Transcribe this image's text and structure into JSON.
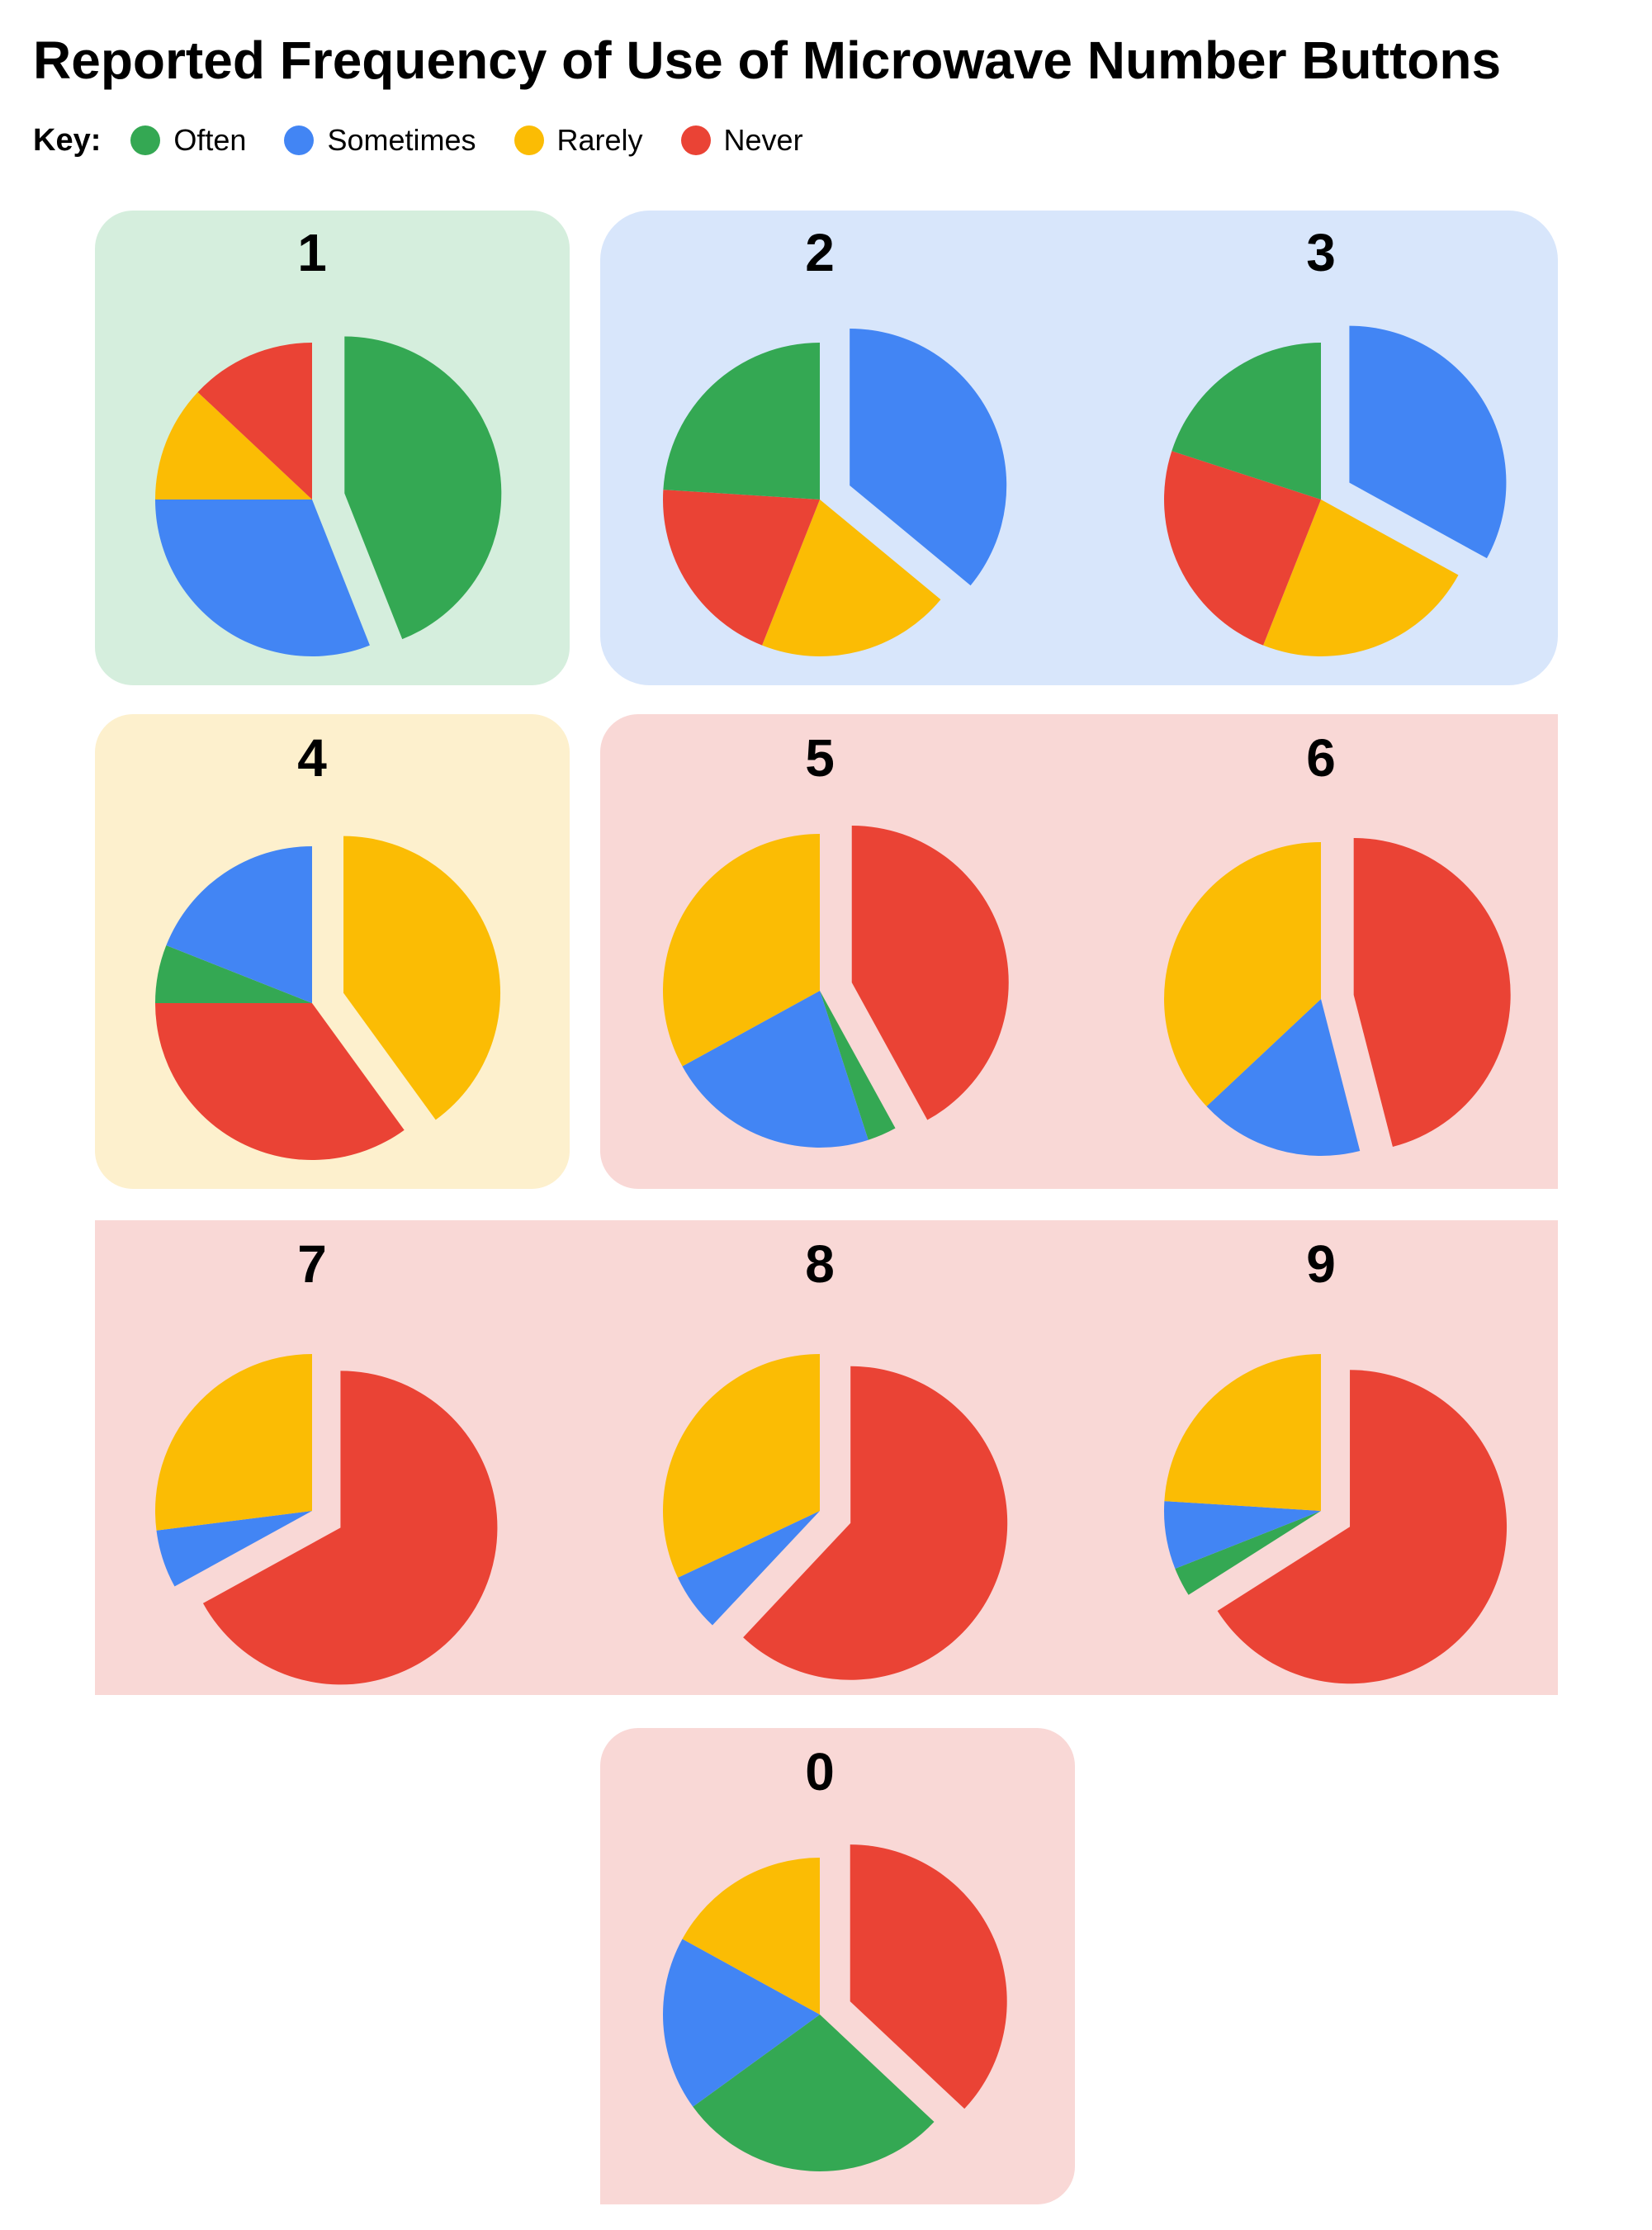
{
  "title": "Reported Frequency of Use of Microwave Number Buttons",
  "legend": {
    "label": "Key:",
    "items": [
      {
        "name": "Often",
        "color": "#34a853"
      },
      {
        "name": "Sometimes",
        "color": "#4285f4"
      },
      {
        "name": "Rarely",
        "color": "#fbbc04"
      },
      {
        "name": "Never",
        "color": "#ea4335"
      }
    ]
  },
  "colors": {
    "often": "#34a853",
    "sometimes": "#4285f4",
    "rarely": "#fbbc04",
    "never": "#ea4335",
    "highlight_often": "#d5eedd",
    "highlight_sometimes": "#d8e6fb",
    "highlight_rarely": "#fdf0cd",
    "highlight_never": "#f9d8d6"
  },
  "chart_data": {
    "type": "pie",
    "series_order": [
      "Often",
      "Sometimes",
      "Rarely",
      "Never"
    ],
    "groups": [
      {
        "category": "Often",
        "buttons": [
          "1"
        ]
      },
      {
        "category": "Sometimes",
        "buttons": [
          "2",
          "3"
        ]
      },
      {
        "category": "Rarely",
        "buttons": [
          "4"
        ]
      },
      {
        "category": "Never",
        "buttons": [
          "5",
          "6",
          "7",
          "8",
          "9",
          "0"
        ]
      }
    ],
    "pies": [
      {
        "label": "1",
        "exploded": "Often",
        "values": [
          44,
          31,
          12,
          13
        ]
      },
      {
        "label": "2",
        "exploded": "Sometimes",
        "values": [
          24,
          36,
          20,
          20
        ]
      },
      {
        "label": "3",
        "exploded": "Sometimes",
        "values": [
          20,
          33,
          23,
          24
        ]
      },
      {
        "label": "4",
        "exploded": "Rarely",
        "values": [
          6,
          19,
          40,
          35
        ]
      },
      {
        "label": "5",
        "exploded": "Never",
        "values": [
          3,
          22,
          33,
          42
        ]
      },
      {
        "label": "6",
        "exploded": "Never",
        "values": [
          0,
          17,
          37,
          46
        ]
      },
      {
        "label": "7",
        "exploded": "Never",
        "values": [
          0,
          6,
          27,
          67
        ]
      },
      {
        "label": "8",
        "exploded": "Never",
        "values": [
          0,
          6,
          32,
          62
        ]
      },
      {
        "label": "9",
        "exploded": "Never",
        "values": [
          3,
          7,
          24,
          66
        ]
      },
      {
        "label": "0",
        "exploded": "Never",
        "values": [
          28,
          18,
          17,
          37
        ]
      }
    ]
  }
}
